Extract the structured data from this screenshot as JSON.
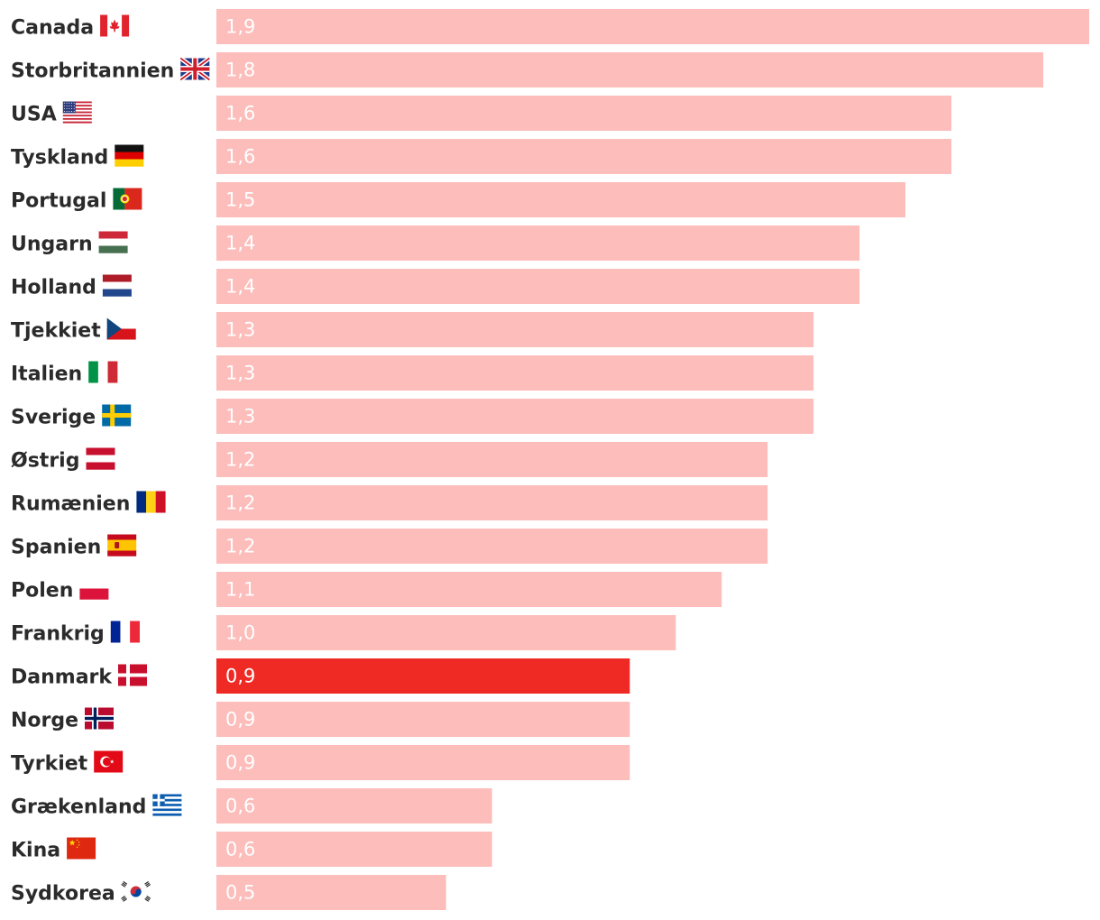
{
  "chart_data": {
    "type": "bar",
    "orientation": "horizontal",
    "categories": [
      "Canada",
      "Storbritannien",
      "USA",
      "Tyskland",
      "Portugal",
      "Ungarn",
      "Holland",
      "Tjekkiet",
      "Italien",
      "Sverige",
      "Østrig",
      "Rumænien",
      "Spanien",
      "Polen",
      "Frankrig",
      "Danmark",
      "Norge",
      "Tyrkiet",
      "Grækenland",
      "Kina",
      "Sydkorea"
    ],
    "values": [
      1.9,
      1.8,
      1.6,
      1.6,
      1.5,
      1.4,
      1.4,
      1.3,
      1.3,
      1.3,
      1.2,
      1.2,
      1.2,
      1.1,
      1.0,
      0.9,
      0.9,
      0.9,
      0.6,
      0.6,
      0.5
    ],
    "value_labels": [
      "1,9",
      "1,8",
      "1,6",
      "1,6",
      "1,5",
      "1,4",
      "1,4",
      "1,3",
      "1,3",
      "1,3",
      "1,2",
      "1,2",
      "1,2",
      "1,1",
      "1,0",
      "0,9",
      "0,9",
      "0,9",
      "0,6",
      "0,6",
      "0,5"
    ],
    "flag_icons": [
      "canada-flag-icon",
      "uk-flag-icon",
      "usa-flag-icon",
      "germany-flag-icon",
      "portugal-flag-icon",
      "hungary-flag-icon",
      "netherlands-flag-icon",
      "czech-flag-icon",
      "italy-flag-icon",
      "sweden-flag-icon",
      "austria-flag-icon",
      "romania-flag-icon",
      "spain-flag-icon",
      "poland-flag-icon",
      "france-flag-icon",
      "denmark-flag-icon",
      "norway-flag-icon",
      "turkey-flag-icon",
      "greece-flag-icon",
      "china-flag-icon",
      "south-korea-flag-icon"
    ],
    "highlight": "Danmark",
    "xlim": [
      0,
      1.9
    ],
    "grid": false,
    "colors": {
      "bar": "#fcbdbb",
      "highlight_bar": "#ef2a24",
      "value_label": "#ffffff",
      "country_label": "#2b2b2b"
    }
  }
}
